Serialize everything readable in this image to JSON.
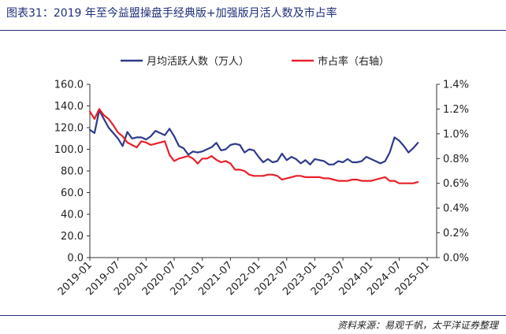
{
  "header": {
    "title": "图表31：2019 年至今益盟操盘手经典版+加强版月活人数及市占率"
  },
  "footer": {
    "source": "资料来源：易观千帆，太平洋证券整理"
  },
  "colors": {
    "mau": "#2e3a8c",
    "share": "#e8202a",
    "rule": "#1f2f7a"
  },
  "chart_data": {
    "type": "line",
    "legend_position": "top-center",
    "grid": false,
    "x_tick_labels": [
      "2019-01",
      "2019-07",
      "2020-01",
      "2020-07",
      "2021-01",
      "2021-07",
      "2022-01",
      "2022-07",
      "2023-01",
      "2023-07",
      "2024-01",
      "2024-07",
      "2025-01"
    ],
    "x_range": [
      "2019-01",
      "2025-03"
    ],
    "y_left": {
      "ylim": [
        0,
        160
      ],
      "tick_labels": [
        "0.0",
        "20.0",
        "40.0",
        "60.0",
        "80.0",
        "100.0",
        "120.0",
        "140.0",
        "160.0"
      ]
    },
    "y_right": {
      "ylim": [
        0,
        1.4
      ],
      "tick_labels": [
        "0.0%",
        "0.2%",
        "0.4%",
        "0.6%",
        "0.8%",
        "1.0%",
        "1.2%",
        "1.4%"
      ]
    },
    "series": [
      {
        "name": "月均活跃人数（万人）",
        "axis": "left",
        "values": [
          118,
          115,
          136,
          128,
          120,
          115,
          110,
          103,
          116,
          110,
          111,
          111,
          109,
          112,
          117,
          115,
          113,
          119,
          112,
          103,
          101,
          95,
          98,
          97,
          98,
          100,
          102,
          106,
          99,
          100,
          104,
          105,
          104,
          97,
          100,
          99,
          93,
          88,
          91,
          88,
          89,
          96,
          90,
          93,
          91,
          87,
          90,
          86,
          91,
          90,
          89,
          86,
          86,
          89,
          88,
          91,
          88,
          88,
          89,
          93,
          91,
          89,
          87,
          89,
          97,
          111,
          108,
          103,
          97,
          101,
          106
        ]
      },
      {
        "name": "市占率（右轴）",
        "axis": "right",
        "values": [
          1.18,
          1.12,
          1.2,
          1.15,
          1.12,
          1.07,
          1.01,
          0.98,
          0.93,
          0.91,
          0.89,
          0.94,
          0.93,
          0.91,
          0.92,
          0.93,
          0.94,
          0.83,
          0.78,
          0.8,
          0.81,
          0.82,
          0.8,
          0.76,
          0.8,
          0.8,
          0.82,
          0.79,
          0.77,
          0.78,
          0.76,
          0.71,
          0.71,
          0.7,
          0.67,
          0.66,
          0.66,
          0.66,
          0.67,
          0.67,
          0.66,
          0.63,
          0.64,
          0.65,
          0.66,
          0.66,
          0.65,
          0.65,
          0.65,
          0.65,
          0.64,
          0.64,
          0.63,
          0.62,
          0.62,
          0.62,
          0.63,
          0.63,
          0.62,
          0.62,
          0.62,
          0.63,
          0.64,
          0.65,
          0.62,
          0.62,
          0.6,
          0.6,
          0.6,
          0.6,
          0.61
        ]
      }
    ]
  }
}
